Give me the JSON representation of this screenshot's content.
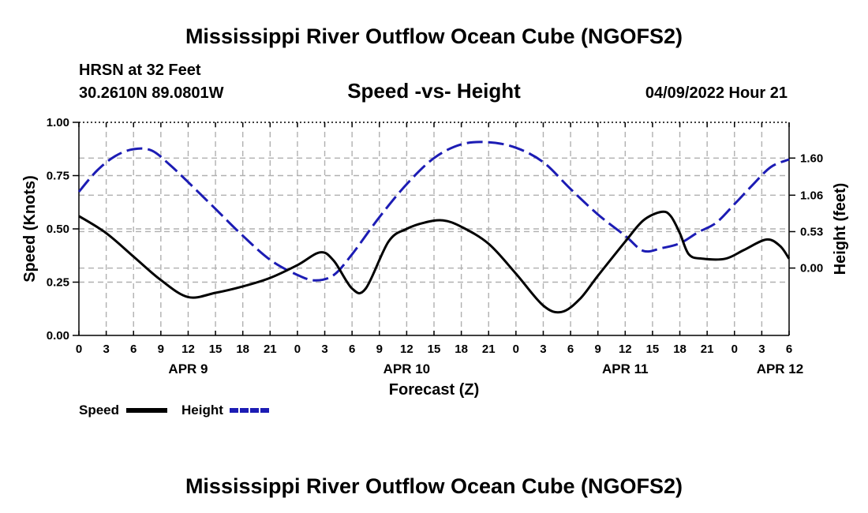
{
  "page": {
    "title": "Mississippi River Outflow Ocean Cube (NGOFS2)",
    "footer_title": "Mississippi River Outflow Ocean Cube (NGOFS2)",
    "station": "HRSN at 32 Feet",
    "coordinates": "30.2610N  89.0801W",
    "run_time": "04/09/2022 Hour 21"
  },
  "chart_data": {
    "type": "line",
    "title": "Speed -vs- Height",
    "xlabel": "Forecast (Z)",
    "ylabel_left": "Speed (Knots)",
    "ylabel_right": "Height (feet)",
    "x_range_hours": [
      0,
      78
    ],
    "x_tick_labels": [
      "0",
      "3",
      "6",
      "9",
      "12",
      "15",
      "18",
      "21",
      "0",
      "3",
      "6",
      "9",
      "12",
      "15",
      "18",
      "21",
      "0",
      "3",
      "6",
      "9",
      "12",
      "15",
      "18",
      "21",
      "0",
      "3",
      "6"
    ],
    "date_labels": [
      {
        "label": "APR 9",
        "hour": 12
      },
      {
        "label": "APR 10",
        "hour": 36
      },
      {
        "label": "APR 11",
        "hour": 60
      },
      {
        "label": "APR 12",
        "hour": 77
      }
    ],
    "y_left": {
      "range": [
        0,
        1
      ],
      "ticks": [
        "0.00",
        "0.25",
        "0.50",
        "0.75",
        "1.00"
      ],
      "tick_values": [
        0,
        0.25,
        0.5,
        0.75,
        1.0
      ]
    },
    "y_right": {
      "range": [
        -0.98,
        2.12
      ],
      "ticks": [
        "0.00",
        "0.53",
        "1.06",
        "1.60"
      ],
      "tick_values": [
        0,
        0.53,
        1.06,
        1.6
      ]
    },
    "grid": true,
    "series": [
      {
        "name": "Speed",
        "axis": "left",
        "color": "#000000",
        "style": "solid",
        "points": [
          [
            0,
            0.56
          ],
          [
            3,
            0.48
          ],
          [
            6,
            0.37
          ],
          [
            9,
            0.26
          ],
          [
            12,
            0.18
          ],
          [
            15,
            0.2
          ],
          [
            18,
            0.23
          ],
          [
            21,
            0.27
          ],
          [
            24,
            0.33
          ],
          [
            26.5,
            0.39
          ],
          [
            28,
            0.35
          ],
          [
            30,
            0.22
          ],
          [
            31.5,
            0.22
          ],
          [
            34,
            0.44
          ],
          [
            36,
            0.5
          ],
          [
            38,
            0.53
          ],
          [
            40,
            0.54
          ],
          [
            42,
            0.51
          ],
          [
            45,
            0.43
          ],
          [
            48,
            0.29
          ],
          [
            51,
            0.14
          ],
          [
            53,
            0.11
          ],
          [
            55,
            0.17
          ],
          [
            57,
            0.28
          ],
          [
            60,
            0.44
          ],
          [
            62,
            0.54
          ],
          [
            64,
            0.58
          ],
          [
            65,
            0.56
          ],
          [
            66,
            0.48
          ],
          [
            67,
            0.38
          ],
          [
            68.5,
            0.36
          ],
          [
            71,
            0.36
          ],
          [
            73,
            0.4
          ],
          [
            75.5,
            0.45
          ],
          [
            77,
            0.42
          ],
          [
            78,
            0.36
          ]
        ]
      },
      {
        "name": "Height",
        "axis": "right",
        "color": "#1c1cb4",
        "style": "dashed",
        "points": [
          [
            0,
            1.11
          ],
          [
            2,
            1.42
          ],
          [
            4,
            1.63
          ],
          [
            6,
            1.73
          ],
          [
            8,
            1.71
          ],
          [
            10,
            1.5
          ],
          [
            12,
            1.25
          ],
          [
            15,
            0.86
          ],
          [
            18,
            0.47
          ],
          [
            21,
            0.12
          ],
          [
            24,
            -0.1
          ],
          [
            26,
            -0.18
          ],
          [
            28,
            -0.1
          ],
          [
            30,
            0.2
          ],
          [
            33,
            0.74
          ],
          [
            36,
            1.22
          ],
          [
            39,
            1.6
          ],
          [
            42,
            1.8
          ],
          [
            45,
            1.83
          ],
          [
            48,
            1.75
          ],
          [
            51,
            1.54
          ],
          [
            54,
            1.15
          ],
          [
            57,
            0.78
          ],
          [
            60,
            0.47
          ],
          [
            62,
            0.25
          ],
          [
            64,
            0.29
          ],
          [
            66,
            0.36
          ],
          [
            68,
            0.52
          ],
          [
            70,
            0.66
          ],
          [
            72,
            0.93
          ],
          [
            74,
            1.21
          ],
          [
            76,
            1.47
          ],
          [
            78,
            1.58
          ]
        ]
      }
    ]
  },
  "legend": [
    {
      "label": "Speed",
      "color": "#000000",
      "style": "solid"
    },
    {
      "label": "Height",
      "color": "#1c1cb4",
      "style": "dashed"
    }
  ]
}
